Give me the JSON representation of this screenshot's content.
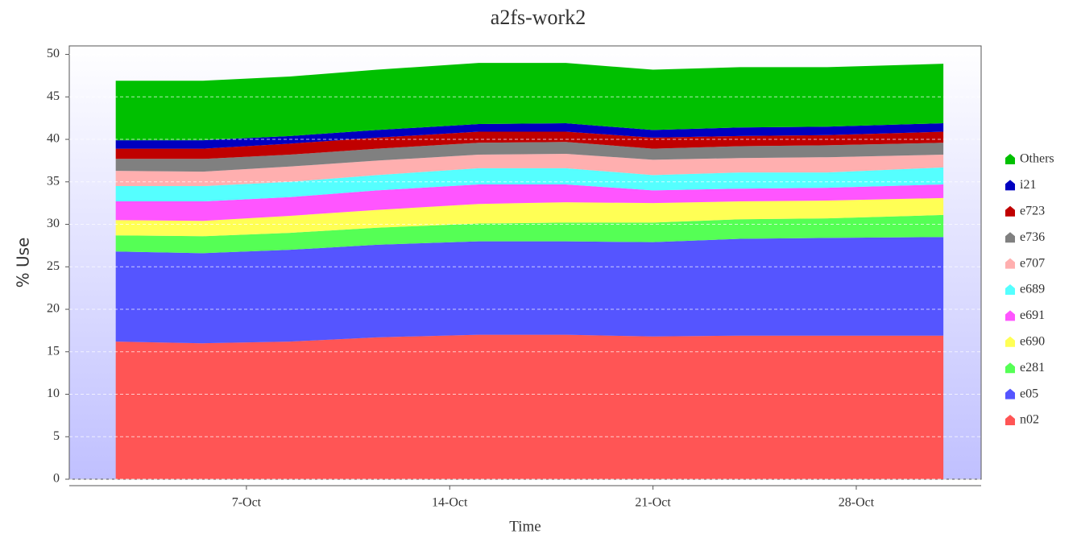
{
  "chart_data": {
    "type": "stacked_area",
    "title": "a2fs-work2",
    "xlabel": "Time",
    "ylabel": "% Use",
    "x": [
      2.5,
      5.5,
      8.5,
      11.5,
      15,
      18,
      21,
      24,
      27,
      31
    ],
    "xlim": [
      0.9,
      32.3
    ],
    "xticks": [
      {
        "value": 7,
        "label": "7-Oct"
      },
      {
        "value": 14,
        "label": "14-Oct"
      },
      {
        "value": 21,
        "label": "21-Oct"
      },
      {
        "value": 28,
        "label": "28-Oct"
      }
    ],
    "ylim": [
      0,
      51
    ],
    "yticks": [
      0,
      5,
      10,
      15,
      20,
      25,
      30,
      35,
      40,
      45,
      50
    ],
    "grid": true,
    "series": [
      {
        "name": "n02",
        "color": "#ff5555",
        "values": [
          16.2,
          16.0,
          16.2,
          16.7,
          17.0,
          17.0,
          16.8,
          16.9,
          16.9,
          16.9
        ]
      },
      {
        "name": "e05",
        "color": "#5555ff",
        "values": [
          10.6,
          10.6,
          10.8,
          10.9,
          11.0,
          11.0,
          11.1,
          11.4,
          11.5,
          11.6
        ]
      },
      {
        "name": "e281",
        "color": "#55ff55",
        "values": [
          1.9,
          2.0,
          2.0,
          2.0,
          2.1,
          2.2,
          2.3,
          2.3,
          2.3,
          2.6
        ]
      },
      {
        "name": "e690",
        "color": "#ffff55",
        "values": [
          1.8,
          1.8,
          2.0,
          2.1,
          2.3,
          2.4,
          2.3,
          2.1,
          2.1,
          2.0
        ]
      },
      {
        "name": "e691",
        "color": "#ff55ff",
        "values": [
          2.2,
          2.3,
          2.2,
          2.3,
          2.3,
          2.1,
          1.5,
          1.5,
          1.5,
          1.6
        ]
      },
      {
        "name": "e689",
        "color": "#55ffff",
        "values": [
          1.8,
          1.8,
          1.8,
          1.8,
          1.9,
          1.9,
          1.8,
          1.9,
          1.8,
          2.0
        ]
      },
      {
        "name": "e707",
        "color": "#ffafaf",
        "values": [
          1.8,
          1.7,
          1.8,
          1.7,
          1.6,
          1.7,
          1.8,
          1.7,
          1.8,
          1.5
        ]
      },
      {
        "name": "e736",
        "color": "#808080",
        "values": [
          1.4,
          1.5,
          1.4,
          1.4,
          1.4,
          1.4,
          1.3,
          1.4,
          1.4,
          1.4
        ]
      },
      {
        "name": "e723",
        "color": "#c00000",
        "values": [
          1.2,
          1.2,
          1.3,
          1.3,
          1.3,
          1.2,
          1.3,
          1.2,
          1.2,
          1.3
        ]
      },
      {
        "name": "i21",
        "color": "#0000c0",
        "values": [
          1.0,
          1.0,
          0.9,
          0.9,
          0.9,
          1.0,
          0.9,
          1.0,
          1.0,
          1.0
        ]
      },
      {
        "name": "Others",
        "color": "#00c000",
        "values": [
          7.0,
          7.0,
          7.0,
          7.1,
          7.2,
          7.1,
          7.1,
          7.1,
          7.0,
          7.0
        ]
      }
    ]
  }
}
